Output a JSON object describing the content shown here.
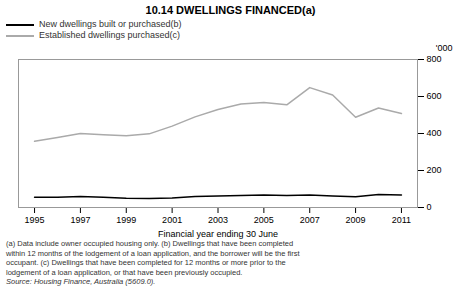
{
  "chart_data": {
    "type": "line",
    "title": "10.14   DWELLINGS FINANCED(a)",
    "xlabel": "Financial year ending 30 June",
    "ylabel": "'000",
    "x": [
      1995,
      1996,
      1997,
      1998,
      1999,
      2000,
      2001,
      2002,
      2003,
      2004,
      2005,
      2006,
      2007,
      2008,
      2009,
      2010,
      2011
    ],
    "series": [
      {
        "name": "New dwellings built or purchased(b)",
        "color": "#000000",
        "values": [
          55,
          55,
          60,
          56,
          50,
          48,
          52,
          60,
          62,
          65,
          68,
          65,
          68,
          62,
          58,
          70,
          68
        ]
      },
      {
        "name": "Established dwellings purchased(c)",
        "color": "#aaaaaa",
        "values": [
          358,
          378,
          400,
          393,
          388,
          398,
          440,
          490,
          530,
          560,
          568,
          555,
          648,
          608,
          488,
          538,
          508
        ]
      }
    ],
    "xlim": [
      1994.3,
      2011.7
    ],
    "xticks": [
      1995,
      1997,
      1999,
      2001,
      2003,
      2005,
      2007,
      2009,
      2011
    ],
    "ylim": [
      0,
      800
    ],
    "yticks": [
      0,
      200,
      400,
      600,
      800
    ],
    "grid": false,
    "legend": "upper left",
    "footnotes": [
      "(a) Data include owner occupied housing only. (b) Dwellings that have been completed",
      "within 12 months of the lodgement of a loan application, and the borrower will be the first",
      "occupant. (c) Dwellings that have been completed for 12 months or more prior to the",
      "lodgement of a loan application, or that have been previously occupied."
    ],
    "source": "Source: Housing Finance, Australia (5609.0)."
  }
}
